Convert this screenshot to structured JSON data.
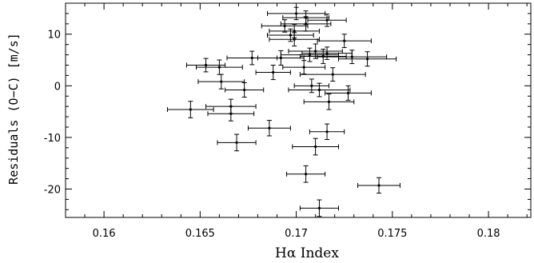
{
  "chart_data": {
    "type": "scatter",
    "title": "",
    "xlabel": "Hα Index",
    "ylabel": "Residuals (O−C) [m/s]",
    "xlim": [
      0.158,
      0.1822
    ],
    "ylim": [
      -25.5,
      16
    ],
    "x_ticks": [
      0.16,
      0.165,
      0.17,
      0.175,
      0.18
    ],
    "x_tick_labels": [
      "0.16",
      "0.165",
      "0.17",
      "0.175",
      "0.18"
    ],
    "y_ticks": [
      -20,
      -10,
      0,
      10
    ],
    "y_tick_labels": [
      "-20",
      "-10",
      "0",
      "10"
    ],
    "grid": false,
    "error_bars": true,
    "points": [
      {
        "x": 0.17,
        "y": 14.0,
        "xerr": 0.0015,
        "yerr": 1.2
      },
      {
        "x": 0.1705,
        "y": 13.2,
        "xerr": 0.0012,
        "yerr": 1.3
      },
      {
        "x": 0.1716,
        "y": 12.7,
        "xerr": 0.001,
        "yerr": 1.2
      },
      {
        "x": 0.1705,
        "y": 12.0,
        "xerr": 0.0013,
        "yerr": 1.4
      },
      {
        "x": 0.1694,
        "y": 11.6,
        "xerr": 0.0012,
        "yerr": 1.2
      },
      {
        "x": 0.1699,
        "y": 10.6,
        "xerr": 0.0013,
        "yerr": 1.3
      },
      {
        "x": 0.1697,
        "y": 9.8,
        "xerr": 0.0012,
        "yerr": 1.2
      },
      {
        "x": 0.1699,
        "y": 9.0,
        "xerr": 0.0013,
        "yerr": 1.3
      },
      {
        "x": 0.1725,
        "y": 8.7,
        "xerr": 0.0014,
        "yerr": 1.3
      },
      {
        "x": 0.171,
        "y": 6.7,
        "xerr": 0.0014,
        "yerr": 1.4
      },
      {
        "x": 0.1716,
        "y": 6.3,
        "xerr": 0.0013,
        "yerr": 1.2
      },
      {
        "x": 0.1707,
        "y": 6.0,
        "xerr": 0.0015,
        "yerr": 1.3
      },
      {
        "x": 0.1714,
        "y": 5.7,
        "xerr": 0.0012,
        "yerr": 1.4
      },
      {
        "x": 0.1729,
        "y": 5.6,
        "xerr": 0.0018,
        "yerr": 1.3
      },
      {
        "x": 0.1692,
        "y": 5.4,
        "xerr": 0.0012,
        "yerr": 1.4
      },
      {
        "x": 0.1677,
        "y": 5.4,
        "xerr": 0.0013,
        "yerr": 1.3
      },
      {
        "x": 0.1737,
        "y": 5.2,
        "xerr": 0.0015,
        "yerr": 1.4
      },
      {
        "x": 0.1653,
        "y": 4.0,
        "xerr": 0.001,
        "yerr": 1.3
      },
      {
        "x": 0.166,
        "y": 3.6,
        "xerr": 0.0012,
        "yerr": 1.4
      },
      {
        "x": 0.1704,
        "y": 3.6,
        "xerr": 0.0011,
        "yerr": 1.3
      },
      {
        "x": 0.1688,
        "y": 2.6,
        "xerr": 0.0009,
        "yerr": 1.4
      },
      {
        "x": 0.1719,
        "y": 2.2,
        "xerr": 0.0017,
        "yerr": 1.3
      },
      {
        "x": 0.1661,
        "y": 0.8,
        "xerr": 0.0012,
        "yerr": 1.4
      },
      {
        "x": 0.1708,
        "y": 0.0,
        "xerr": 0.0009,
        "yerr": 1.3
      },
      {
        "x": 0.1673,
        "y": -0.8,
        "xerr": 0.001,
        "yerr": 1.4
      },
      {
        "x": 0.1712,
        "y": -0.8,
        "xerr": 0.0016,
        "yerr": 1.3
      },
      {
        "x": 0.1727,
        "y": -1.4,
        "xerr": 0.0012,
        "yerr": 1.4
      },
      {
        "x": 0.1717,
        "y": -3.1,
        "xerr": 0.0013,
        "yerr": 1.5
      },
      {
        "x": 0.1666,
        "y": -4.0,
        "xerr": 0.0013,
        "yerr": 1.4
      },
      {
        "x": 0.1645,
        "y": -4.6,
        "xerr": 0.0012,
        "yerr": 1.6
      },
      {
        "x": 0.1666,
        "y": -5.4,
        "xerr": 0.0012,
        "yerr": 1.4
      },
      {
        "x": 0.1686,
        "y": -8.2,
        "xerr": 0.0011,
        "yerr": 1.5
      },
      {
        "x": 0.1716,
        "y": -8.9,
        "xerr": 0.0009,
        "yerr": 1.5
      },
      {
        "x": 0.1669,
        "y": -11.0,
        "xerr": 0.001,
        "yerr": 1.6
      },
      {
        "x": 0.171,
        "y": -11.8,
        "xerr": 0.0012,
        "yerr": 1.6
      },
      {
        "x": 0.1705,
        "y": -17.1,
        "xerr": 0.001,
        "yerr": 1.6
      },
      {
        "x": 0.1743,
        "y": -19.3,
        "xerr": 0.0011,
        "yerr": 1.5
      },
      {
        "x": 0.1712,
        "y": -23.7,
        "xerr": 0.001,
        "yerr": 1.6
      }
    ]
  }
}
